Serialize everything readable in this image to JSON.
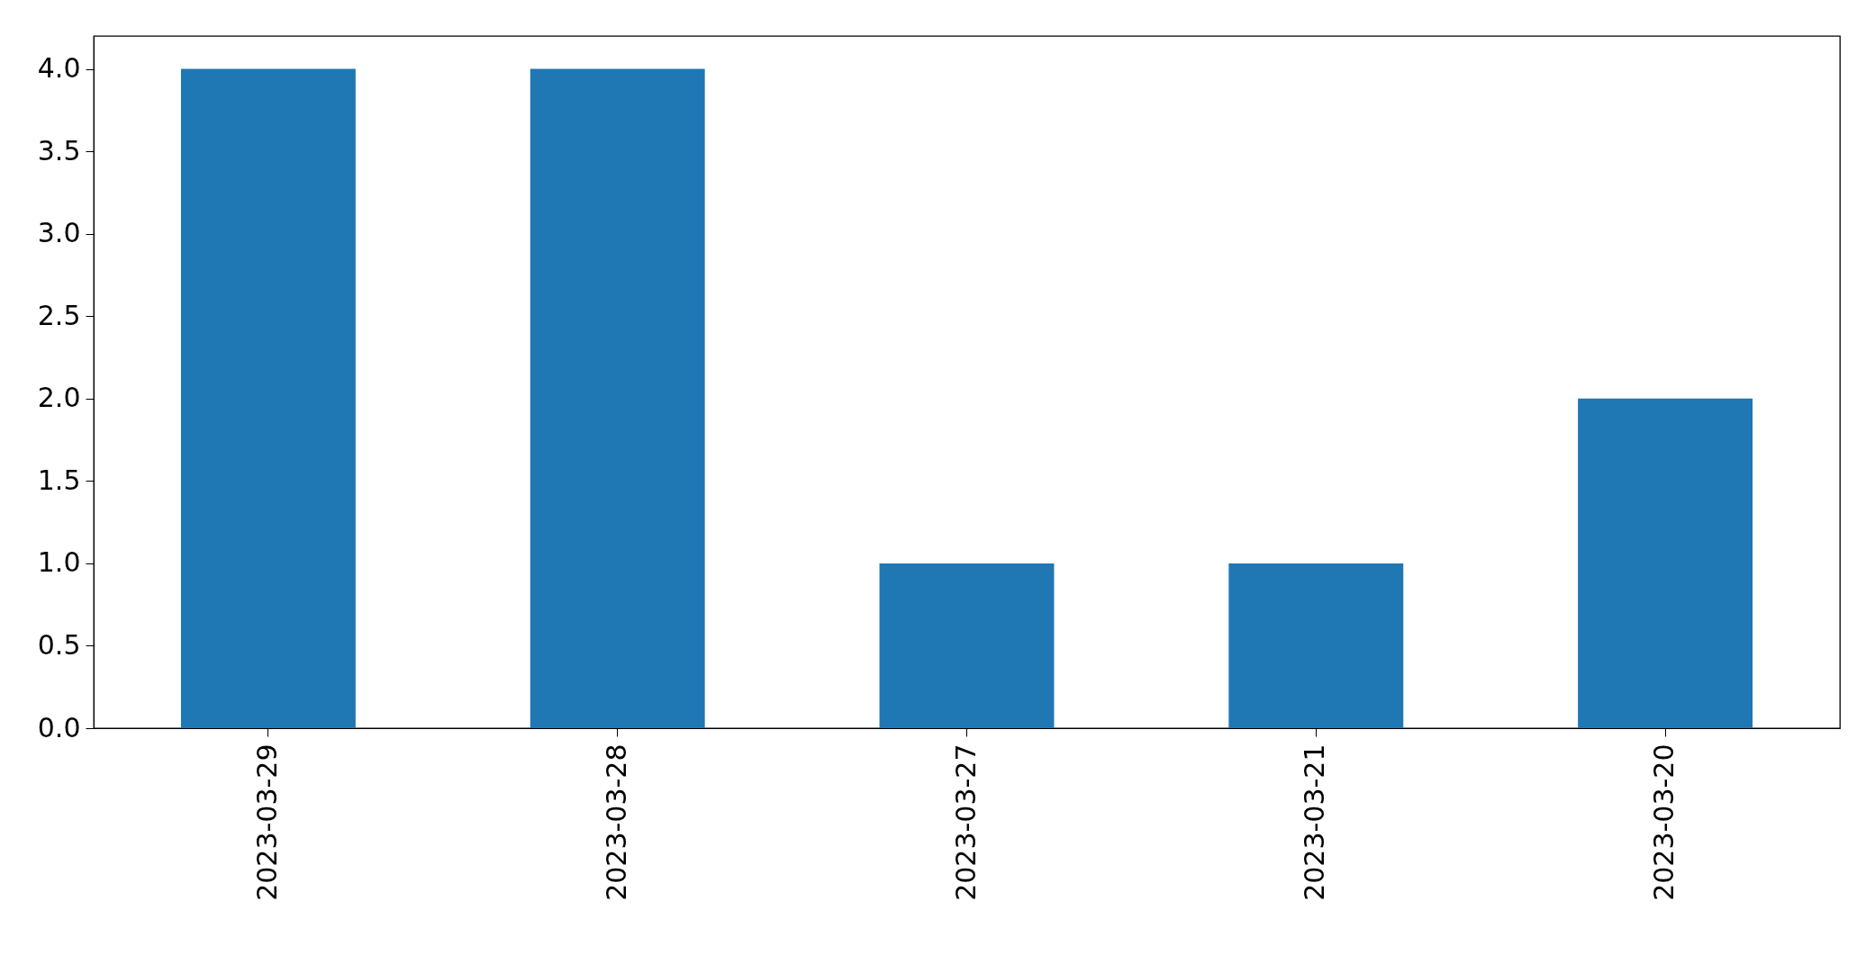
{
  "chart_data": {
    "type": "bar",
    "categories": [
      "2023-03-29",
      "2023-03-28",
      "2023-03-27",
      "2023-03-21",
      "2023-03-20"
    ],
    "values": [
      4,
      4,
      1,
      1,
      2
    ],
    "color": "#1f77b4",
    "ylim": [
      0,
      4.2
    ],
    "yticks": [
      {
        "value": 0,
        "label": "0.0"
      },
      0.5,
      {
        "value": 1,
        "label": "1.0"
      },
      1.5,
      {
        "value": 2,
        "label": "2.0"
      },
      2.5,
      {
        "value": 3,
        "label": "3.0"
      },
      3.5,
      {
        "value": 4,
        "label": "4.0"
      }
    ],
    "grid": false
  }
}
